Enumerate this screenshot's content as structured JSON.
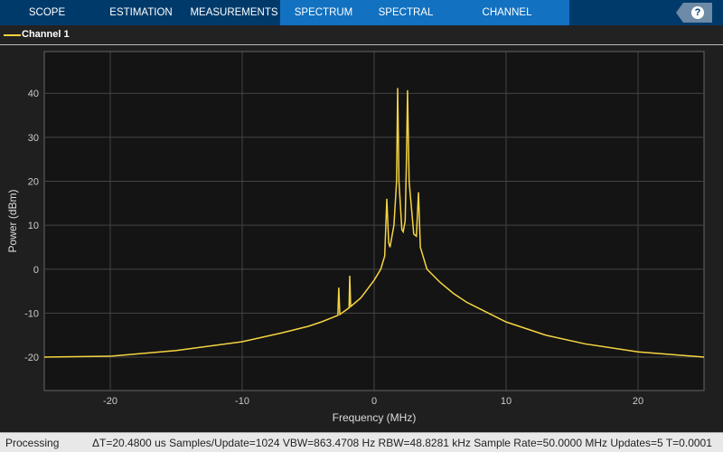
{
  "toolbar": {
    "tabs": [
      {
        "label": "SCOPE",
        "w": 104
      },
      {
        "label": "ESTIMATION",
        "w": 104
      },
      {
        "label": "MEASUREMENTS",
        "w": 102
      },
      {
        "label": "SPECTRUM",
        "w": 96
      },
      {
        "label": "SPECTRAL MASK",
        "w": 86
      },
      {
        "label": "CHANNEL MEASUREMENTS",
        "w": 138
      }
    ],
    "help_label": "?"
  },
  "legend": {
    "label": "Channel 1",
    "color": "#f5d442"
  },
  "status": {
    "state": "Processing",
    "info": "ΔT=20.4800 us  Samples/Update=1024  VBW=863.4708 Hz  RBW=48.8281 kHz  Sample Rate=50.0000 MHz  Updates=5  T=0.0001"
  },
  "chart_data": {
    "type": "line",
    "xlabel": "Frequency (MHz)",
    "ylabel": "Power (dBm)",
    "xlim": [
      -25,
      25
    ],
    "ylim": [
      -27.6,
      49.5
    ],
    "xticks": [
      -20,
      -10,
      0,
      10,
      20
    ],
    "yticks": [
      -20,
      -10,
      0,
      10,
      20,
      30,
      40
    ],
    "grid": true,
    "background": "#141414",
    "line_color": "#f5d442",
    "series": [
      {
        "name": "Channel 1",
        "points": [
          [
            -25,
            -20
          ],
          [
            -20,
            -19.8
          ],
          [
            -15,
            -18.5
          ],
          [
            -10,
            -16.5
          ],
          [
            -7,
            -14.5
          ],
          [
            -5,
            -13
          ],
          [
            -4,
            -12
          ],
          [
            -3,
            -10.8
          ],
          [
            -2.75,
            -10.5
          ],
          [
            -2.68,
            -4.2
          ],
          [
            -2.6,
            -10.3
          ],
          [
            -2,
            -9
          ],
          [
            -1.9,
            -8.8
          ],
          [
            -1.85,
            -1.5
          ],
          [
            -1.78,
            -8.5
          ],
          [
            -1,
            -6.5
          ],
          [
            -0.5,
            -4.5
          ],
          [
            0,
            -2.5
          ],
          [
            0.5,
            0
          ],
          [
            0.8,
            3
          ],
          [
            0.96,
            16
          ],
          [
            1.1,
            6
          ],
          [
            1.2,
            5
          ],
          [
            1.5,
            10
          ],
          [
            1.7,
            20
          ],
          [
            1.78,
            41.2
          ],
          [
            1.88,
            20
          ],
          [
            2.1,
            9
          ],
          [
            2.2,
            8.5
          ],
          [
            2.35,
            11
          ],
          [
            2.45,
            25
          ],
          [
            2.53,
            40.7
          ],
          [
            2.65,
            20
          ],
          [
            3.0,
            8
          ],
          [
            3.2,
            7.5
          ],
          [
            3.36,
            17.5
          ],
          [
            3.5,
            5
          ],
          [
            4,
            0
          ],
          [
            5,
            -3
          ],
          [
            6,
            -5.5
          ],
          [
            7,
            -7.5
          ],
          [
            8,
            -9
          ],
          [
            10,
            -12
          ],
          [
            13,
            -15
          ],
          [
            16,
            -17
          ],
          [
            20,
            -18.8
          ],
          [
            25,
            -20
          ]
        ]
      }
    ]
  }
}
